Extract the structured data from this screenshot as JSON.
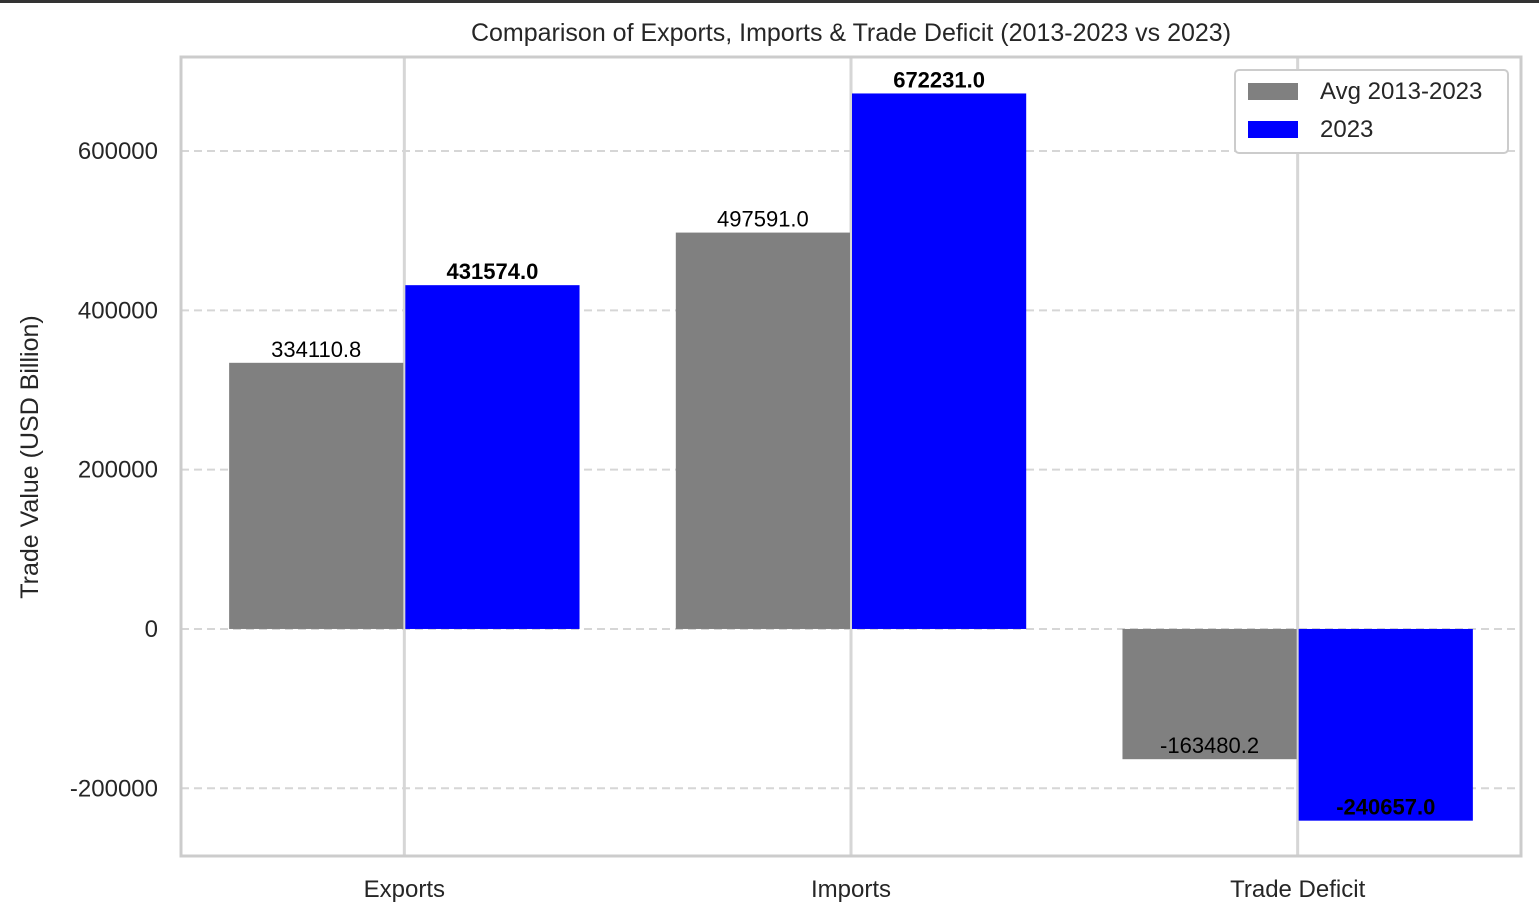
{
  "chart_data": {
    "type": "bar",
    "title": "Comparison of Exports, Imports & Trade Deficit (2013-2023 vs 2023)",
    "xlabel": "",
    "ylabel": "Trade Value (USD Billion)",
    "categories": [
      "Exports",
      "Imports",
      "Trade Deficit"
    ],
    "series": [
      {
        "name": "Avg 2013-2023",
        "color": "#808080",
        "values": [
          334110.8,
          497591.0,
          -163480.2
        ],
        "labels": [
          "334110.8",
          "497591.0",
          "-163480.2"
        ],
        "label_weight": "normal"
      },
      {
        "name": "2023",
        "color": "#0000ff",
        "values": [
          431574.0,
          672231.0,
          -240657.0
        ],
        "labels": [
          "431574.0",
          "672231.0",
          "-240657.0"
        ],
        "label_weight": "bold"
      }
    ],
    "ylim": [
      -285000,
      718000
    ],
    "yticks": [
      -200000,
      0,
      200000,
      400000,
      600000
    ],
    "ytick_labels": [
      "-200000",
      "0",
      "200000",
      "400000",
      "600000"
    ],
    "grid": true,
    "legend_position": "top-right"
  }
}
